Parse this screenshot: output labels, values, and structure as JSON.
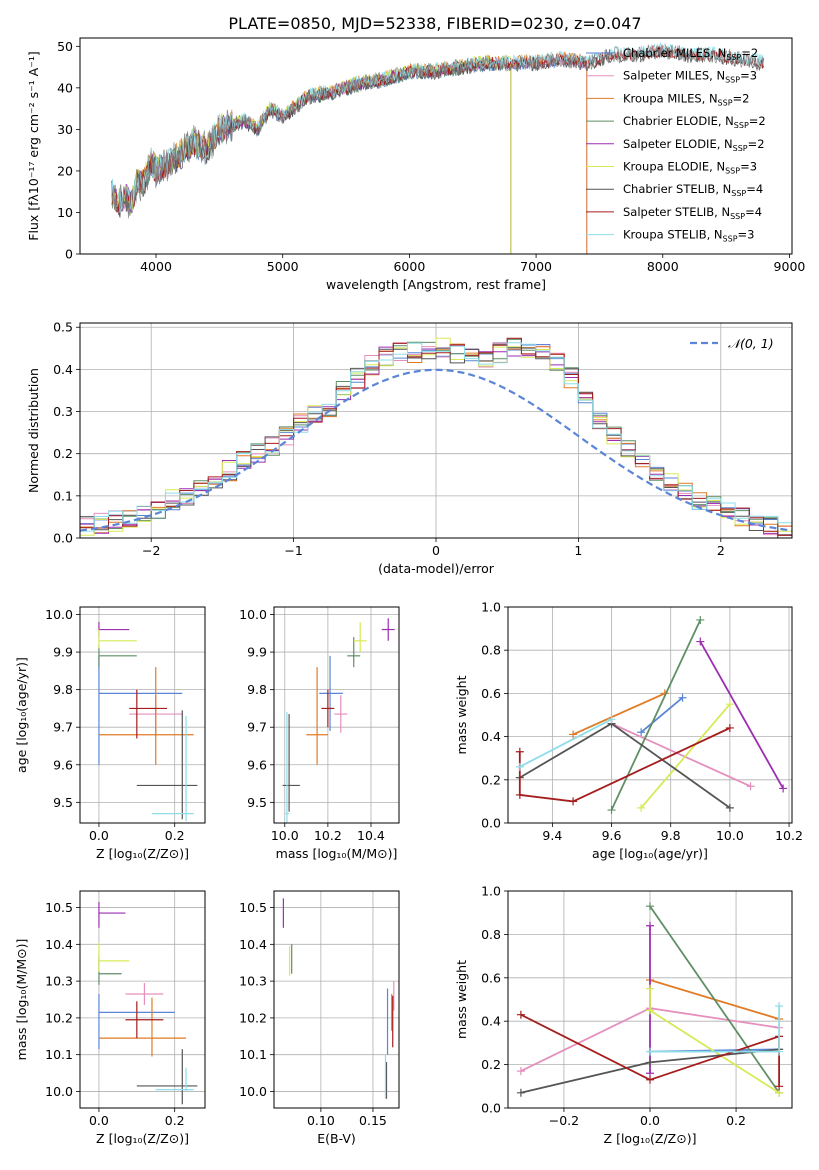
{
  "title": "PLATE=0850, MJD=52338, FIBERID=0230, z=0.047",
  "colors": {
    "Chabrier MILES": "#5b86d6",
    "Salpeter MILES": "#e58fbf",
    "Kroupa MILES": "#e07b26",
    "Chabrier ELODIE": "#5f8f65",
    "Salpeter ELODIE": "#9b2fb0",
    "Kroupa ELODIE": "#d7ea56",
    "Chabrier STELIB": "#555555",
    "Salpeter STELIB": "#a51d1d",
    "Kroupa STELIB": "#8edde8"
  },
  "chart_data": [
    {
      "id": "spectrum",
      "type": "line",
      "title": "PLATE=0850, MJD=52338, FIBERID=0230, z=0.047",
      "xlabel": "wavelength [Angstrom, rest frame]",
      "ylabel": "Flux [fλ10⁻¹⁷ erg cm⁻² s⁻¹ A⁻¹]",
      "xlim": [
        3400,
        9020
      ],
      "ylim": [
        0,
        52
      ],
      "xticks": [
        4000,
        5000,
        6000,
        7000,
        8000,
        9000
      ],
      "yticks": [
        0,
        10,
        20,
        30,
        40,
        50
      ],
      "grid": false,
      "legend_position": "upper-right",
      "continuum_x": [
        3650,
        3700,
        3760,
        3800,
        3850,
        3900,
        3960,
        4000,
        4100,
        4200,
        4300,
        4400,
        4500,
        4600,
        4700,
        4800,
        4900,
        5000,
        5200,
        5400,
        5600,
        5800,
        6000,
        6200,
        6400,
        6600,
        6800,
        7000,
        7200,
        7400,
        7600,
        7800,
        8000,
        8200,
        8400,
        8600,
        8800
      ],
      "continuum_y": [
        15,
        12,
        14,
        12,
        17,
        17,
        22,
        20,
        22,
        24,
        27,
        25,
        30,
        31,
        32,
        30,
        35,
        33,
        38,
        39,
        41,
        42,
        44,
        44,
        45,
        46,
        46,
        46,
        47,
        46,
        48,
        48,
        49,
        48,
        48,
        47,
        46
      ],
      "series": [
        {
          "name": "Chabrier MILES",
          "color_key": "Chabrier MILES",
          "ssp": "2",
          "x_max": 7400
        },
        {
          "name": "Salpeter MILES",
          "color_key": "Salpeter MILES",
          "ssp": "3",
          "x_max": 7400
        },
        {
          "name": "Kroupa MILES",
          "color_key": "Kroupa MILES",
          "ssp": "2",
          "x_max": 7400
        },
        {
          "name": "Chabrier ELODIE",
          "color_key": "Chabrier ELODIE",
          "ssp": "2",
          "x_max": 6800
        },
        {
          "name": "Salpeter ELODIE",
          "color_key": "Salpeter ELODIE",
          "ssp": "2",
          "x_max": 6800
        },
        {
          "name": "Kroupa ELODIE",
          "color_key": "Kroupa ELODIE",
          "ssp": "3",
          "x_max": 6800
        },
        {
          "name": "Chabrier STELIB",
          "color_key": "Chabrier STELIB",
          "ssp": "4",
          "x_max": 8800
        },
        {
          "name": "Salpeter STELIB",
          "color_key": "Salpeter STELIB",
          "ssp": "4",
          "x_max": 8800
        },
        {
          "name": "Kroupa STELIB",
          "color_key": "Kroupa STELIB",
          "ssp": "3",
          "x_max": 8800
        }
      ],
      "data_line": {
        "color": "#7f7f7f"
      }
    },
    {
      "id": "residuals",
      "type": "line",
      "xlabel": "(data-model)/error",
      "ylabel": "Normed distribution",
      "xlim": [
        -2.5,
        2.5
      ],
      "ylim": [
        0,
        0.51
      ],
      "xticks": [
        -2,
        -1,
        0,
        1,
        2
      ],
      "yticks": [
        0.0,
        0.1,
        0.2,
        0.3,
        0.4,
        0.5
      ],
      "grid": true,
      "legend_position": "upper-right",
      "legend": "𝒩(0, 1)",
      "gaussian": {
        "mean": 0,
        "sigma": 1,
        "color": "#5b86d6"
      },
      "bin_width": 0.1,
      "bin_start": -2.5,
      "base_hist": [
        0.03,
        0.035,
        0.04,
        0.05,
        0.06,
        0.07,
        0.09,
        0.1,
        0.12,
        0.14,
        0.16,
        0.18,
        0.2,
        0.22,
        0.24,
        0.27,
        0.29,
        0.31,
        0.35,
        0.38,
        0.41,
        0.43,
        0.44,
        0.44,
        0.45,
        0.45,
        0.44,
        0.43,
        0.42,
        0.44,
        0.45,
        0.45,
        0.44,
        0.42,
        0.38,
        0.33,
        0.28,
        0.24,
        0.21,
        0.18,
        0.15,
        0.13,
        0.11,
        0.09,
        0.08,
        0.065,
        0.05,
        0.04,
        0.03,
        0.02
      ]
    },
    {
      "id": "age-vs-Z",
      "type": "scatter",
      "xlabel": "Z [log₁₀(Z/Z⊙)]",
      "ylabel": "age  [log₁₀(age/yr)]",
      "xlim": [
        -0.05,
        0.28
      ],
      "ylim": [
        9.445,
        10.02
      ],
      "xticks": [
        0.0,
        0.2
      ],
      "yticks": [
        9.5,
        9.6,
        9.7,
        9.8,
        9.9,
        10.0
      ],
      "grid": true,
      "points": [
        {
          "series": "Chabrier MILES",
          "x": 0.0,
          "xerr": [
            0.0,
            0.22
          ],
          "y": 9.79,
          "yerr": [
            0.19,
            0.1
          ]
        },
        {
          "series": "Salpeter MILES",
          "x": 0.15,
          "xerr": [
            0.07,
            0.07
          ],
          "y": 9.735,
          "yerr": [
            0.06,
            0.05
          ]
        },
        {
          "series": "Kroupa MILES",
          "x": 0.15,
          "xerr": [
            0.15,
            0.1
          ],
          "y": 9.68,
          "yerr": [
            0.08,
            0.18
          ]
        },
        {
          "series": "Chabrier ELODIE",
          "x": 0.0,
          "xerr": [
            0.0,
            0.1
          ],
          "y": 9.89,
          "yerr": [
            0.03,
            0.03
          ]
        },
        {
          "series": "Salpeter ELODIE",
          "x": 0.0,
          "xerr": [
            0.0,
            0.08
          ],
          "y": 9.96,
          "yerr": [
            0.02,
            0.02
          ]
        },
        {
          "series": "Kroupa ELODIE",
          "x": 0.0,
          "xerr": [
            0.0,
            0.1
          ],
          "y": 9.93,
          "yerr": [
            0.02,
            0.03
          ]
        },
        {
          "series": "Chabrier STELIB",
          "x": 0.22,
          "xerr": [
            0.12,
            0.04
          ],
          "y": 9.545,
          "yerr": [
            0.09,
            0.2
          ]
        },
        {
          "series": "Salpeter STELIB",
          "x": 0.1,
          "xerr": [
            0.02,
            0.08
          ],
          "y": 9.75,
          "yerr": [
            0.08,
            0.05
          ]
        },
        {
          "series": "Kroupa STELIB",
          "x": 0.23,
          "xerr": [
            0.09,
            0.02
          ],
          "y": 9.47,
          "yerr": [
            0.02,
            0.26
          ]
        }
      ]
    },
    {
      "id": "age-vs-mass",
      "type": "scatter",
      "xlabel": "mass [log₁₀(M/M⊙)]",
      "ylabel": "",
      "xlim": [
        9.95,
        10.53
      ],
      "ylim": [
        9.445,
        10.02
      ],
      "xticks": [
        10.0,
        10.2,
        10.4
      ],
      "yticks": [
        9.5,
        9.6,
        9.7,
        9.8,
        9.9,
        10.0
      ],
      "grid": true,
      "points": [
        {
          "series": "Chabrier MILES",
          "x": 10.21,
          "xerr": [
            0.05,
            0.06
          ],
          "y": 9.79,
          "yerr": [
            0.1,
            0.1
          ]
        },
        {
          "series": "Salpeter MILES",
          "x": 10.26,
          "xerr": [
            0.03,
            0.03
          ],
          "y": 9.735,
          "yerr": [
            0.05,
            0.05
          ]
        },
        {
          "series": "Kroupa MILES",
          "x": 10.15,
          "xerr": [
            0.05,
            0.05
          ],
          "y": 9.68,
          "yerr": [
            0.08,
            0.18
          ]
        },
        {
          "series": "Chabrier ELODIE",
          "x": 10.32,
          "xerr": [
            0.03,
            0.03
          ],
          "y": 9.89,
          "yerr": [
            0.03,
            0.05
          ]
        },
        {
          "series": "Salpeter ELODIE",
          "x": 10.48,
          "xerr": [
            0.03,
            0.03
          ],
          "y": 9.96,
          "yerr": [
            0.03,
            0.03
          ]
        },
        {
          "series": "Kroupa ELODIE",
          "x": 10.35,
          "xerr": [
            0.03,
            0.03
          ],
          "y": 9.93,
          "yerr": [
            0.03,
            0.05
          ]
        },
        {
          "series": "Chabrier STELIB",
          "x": 10.02,
          "xerr": [
            0.03,
            0.05
          ],
          "y": 9.545,
          "yerr": [
            0.07,
            0.19
          ]
        },
        {
          "series": "Salpeter STELIB",
          "x": 10.2,
          "xerr": [
            0.03,
            0.03
          ],
          "y": 9.75,
          "yerr": [
            0.05,
            0.05
          ]
        },
        {
          "series": "Kroupa STELIB",
          "x": 10.01,
          "xerr": [
            0.01,
            0.01
          ],
          "y": 9.47,
          "yerr": [
            0.03,
            0.27
          ]
        }
      ]
    },
    {
      "id": "mass-weight-vs-age",
      "type": "line",
      "xlabel": "age  [log₁₀(age/yr)]",
      "ylabel": "mass weight",
      "xlim": [
        9.25,
        10.21
      ],
      "ylim": [
        0.0,
        1.0
      ],
      "xticks": [
        9.4,
        9.6,
        9.8,
        10.0,
        10.2
      ],
      "yticks": [
        0.0,
        0.2,
        0.4,
        0.6,
        0.8,
        1.0
      ],
      "grid": true,
      "series": [
        {
          "name": "Chabrier MILES",
          "x": [
            9.7,
            9.84
          ],
          "y": [
            0.42,
            0.58
          ]
        },
        {
          "name": "Salpeter MILES",
          "x": [
            9.6,
            10.07
          ],
          "y": [
            0.46,
            0.17
          ]
        },
        {
          "name": "Kroupa MILES",
          "x": [
            9.47,
            9.78
          ],
          "y": [
            0.41,
            0.6
          ]
        },
        {
          "name": "Chabrier ELODIE",
          "x": [
            9.6,
            9.9
          ],
          "y": [
            0.06,
            0.94
          ]
        },
        {
          "name": "Salpeter ELODIE",
          "x": [
            9.9,
            10.18
          ],
          "y": [
            0.84,
            0.16
          ]
        },
        {
          "name": "Kroupa ELODIE",
          "x": [
            9.7,
            10.0
          ],
          "y": [
            0.07,
            0.55
          ]
        },
        {
          "name": "Chabrier STELIB",
          "x": [
            9.29,
            9.6,
            10.0
          ],
          "y": [
            0.21,
            0.46,
            0.07
          ]
        },
        {
          "name": "Salpeter STELIB",
          "x": [
            9.29,
            9.29,
            9.47,
            10.0
          ],
          "y": [
            0.33,
            0.13,
            0.1,
            0.44
          ]
        },
        {
          "name": "Kroupa STELIB",
          "x": [
            9.29,
            9.6
          ],
          "y": [
            0.26,
            0.48
          ]
        }
      ]
    },
    {
      "id": "mass-vs-Z",
      "type": "scatter",
      "xlabel": "Z [log₁₀(Z/Z⊙)]",
      "ylabel": "mass [log₁₀(M/M⊙)]",
      "xlim": [
        -0.05,
        0.28
      ],
      "ylim": [
        9.955,
        10.545
      ],
      "xticks": [
        0.0,
        0.2
      ],
      "yticks": [
        10.0,
        10.1,
        10.2,
        10.3,
        10.4,
        10.5
      ],
      "grid": true,
      "points": [
        {
          "series": "Chabrier MILES",
          "x": 0.0,
          "xerr": [
            0.0,
            0.2
          ],
          "y": 10.215,
          "yerr": [
            0.1,
            0.05
          ]
        },
        {
          "series": "Salpeter MILES",
          "x": 0.12,
          "xerr": [
            0.05,
            0.05
          ],
          "y": 10.265,
          "yerr": [
            0.03,
            0.03
          ]
        },
        {
          "series": "Kroupa MILES",
          "x": 0.14,
          "xerr": [
            0.14,
            0.09
          ],
          "y": 10.145,
          "yerr": [
            0.05,
            0.11
          ]
        },
        {
          "series": "Chabrier ELODIE",
          "x": 0.0,
          "xerr": [
            0.0,
            0.06
          ],
          "y": 10.32,
          "yerr": [
            0.03,
            0.05
          ]
        },
        {
          "series": "Salpeter ELODIE",
          "x": 0.0,
          "xerr": [
            0.0,
            0.07
          ],
          "y": 10.485,
          "yerr": [
            0.04,
            0.03
          ]
        },
        {
          "series": "Kroupa ELODIE",
          "x": 0.0,
          "xerr": [
            0.0,
            0.08
          ],
          "y": 10.355,
          "yerr": [
            0.03,
            0.05
          ]
        },
        {
          "series": "Chabrier STELIB",
          "x": 0.22,
          "xerr": [
            0.12,
            0.04
          ],
          "y": 10.015,
          "yerr": [
            0.05,
            0.1
          ]
        },
        {
          "series": "Salpeter STELIB",
          "x": 0.1,
          "xerr": [
            0.03,
            0.07
          ],
          "y": 10.195,
          "yerr": [
            0.05,
            0.05
          ]
        },
        {
          "series": "Kroupa STELIB",
          "x": 0.23,
          "xerr": [
            0.08,
            0.02
          ],
          "y": 10.005,
          "yerr": [
            0.005,
            0.06
          ]
        }
      ]
    },
    {
      "id": "mass-vs-EBV",
      "type": "scatter",
      "xlabel": "E(B-V)",
      "ylabel": "",
      "xlim": [
        0.055,
        0.175
      ],
      "ylim": [
        9.955,
        10.545
      ],
      "xticks": [
        0.1,
        0.15
      ],
      "yticks": [
        10.0,
        10.1,
        10.2,
        10.3,
        10.4,
        10.5
      ],
      "grid": true,
      "points": [
        {
          "series": "Chabrier MILES",
          "x": 0.164,
          "xerr": [
            0.0,
            0.0
          ],
          "y": 10.19,
          "yerr": [
            0.09,
            0.09
          ]
        },
        {
          "series": "Salpeter MILES",
          "x": 0.17,
          "xerr": [
            0.0,
            0.0
          ],
          "y": 10.26,
          "yerr": [
            0.04,
            0.04
          ]
        },
        {
          "series": "Kroupa MILES",
          "x": 0.168,
          "xerr": [
            0.0,
            0.0
          ],
          "y": 10.215,
          "yerr": [
            0.05,
            0.05
          ]
        },
        {
          "series": "Chabrier ELODIE",
          "x": 0.072,
          "xerr": [
            0.0,
            0.0
          ],
          "y": 10.36,
          "yerr": [
            0.04,
            0.04
          ]
        },
        {
          "series": "Salpeter ELODIE",
          "x": 0.064,
          "xerr": [
            0.0,
            0.0
          ],
          "y": 10.485,
          "yerr": [
            0.04,
            0.04
          ]
        },
        {
          "series": "Kroupa ELODIE",
          "x": 0.07,
          "xerr": [
            0.0,
            0.0
          ],
          "y": 10.355,
          "yerr": [
            0.04,
            0.04
          ]
        },
        {
          "series": "Chabrier STELIB",
          "x": 0.163,
          "xerr": [
            0.0,
            0.0
          ],
          "y": 10.03,
          "yerr": [
            0.05,
            0.05
          ]
        },
        {
          "series": "Salpeter STELIB",
          "x": 0.169,
          "xerr": [
            0.0,
            0.0
          ],
          "y": 10.19,
          "yerr": [
            0.07,
            0.07
          ]
        },
        {
          "series": "Kroupa STELIB",
          "x": 0.162,
          "xerr": [
            0.0,
            0.0
          ],
          "y": 10.04,
          "yerr": [
            0.06,
            0.06
          ]
        }
      ]
    },
    {
      "id": "mass-weight-vs-Z",
      "type": "line",
      "xlabel": "Z [log₁₀(Z/Z⊙)]",
      "ylabel": "mass weight",
      "xlim": [
        -0.33,
        0.33
      ],
      "ylim": [
        0.0,
        1.0
      ],
      "xticks": [
        -0.2,
        0.0,
        0.2
      ],
      "yticks": [
        0.0,
        0.2,
        0.4,
        0.6,
        0.8,
        1.0
      ],
      "grid": true,
      "series": [
        {
          "name": "Chabrier MILES",
          "x": [
            0.0,
            0.3
          ],
          "y": [
            0.26,
            0.27
          ]
        },
        {
          "name": "Salpeter MILES",
          "x": [
            -0.3,
            0.0,
            0.3
          ],
          "y": [
            0.17,
            0.46,
            0.37
          ]
        },
        {
          "name": "Kroupa MILES",
          "x": [
            0.0,
            0.3
          ],
          "y": [
            0.59,
            0.41
          ]
        },
        {
          "name": "Chabrier ELODIE",
          "x": [
            0.0,
            0.3
          ],
          "y": [
            0.93,
            0.07
          ]
        },
        {
          "name": "Salpeter ELODIE",
          "x": [
            0.0,
            0.0
          ],
          "y": [
            0.84,
            0.16
          ]
        },
        {
          "name": "Kroupa ELODIE",
          "x": [
            0.0,
            0.0,
            0.3
          ],
          "y": [
            0.55,
            0.45,
            0.07
          ]
        },
        {
          "name": "Chabrier STELIB",
          "x": [
            -0.3,
            0.0,
            0.3
          ],
          "y": [
            0.07,
            0.21,
            0.27
          ]
        },
        {
          "name": "Salpeter STELIB",
          "x": [
            -0.3,
            0.0,
            0.3,
            0.3
          ],
          "y": [
            0.43,
            0.13,
            0.33,
            0.1
          ]
        },
        {
          "name": "Kroupa STELIB",
          "x": [
            0.0,
            0.3,
            0.3
          ],
          "y": [
            0.26,
            0.26,
            0.47
          ]
        }
      ]
    }
  ]
}
